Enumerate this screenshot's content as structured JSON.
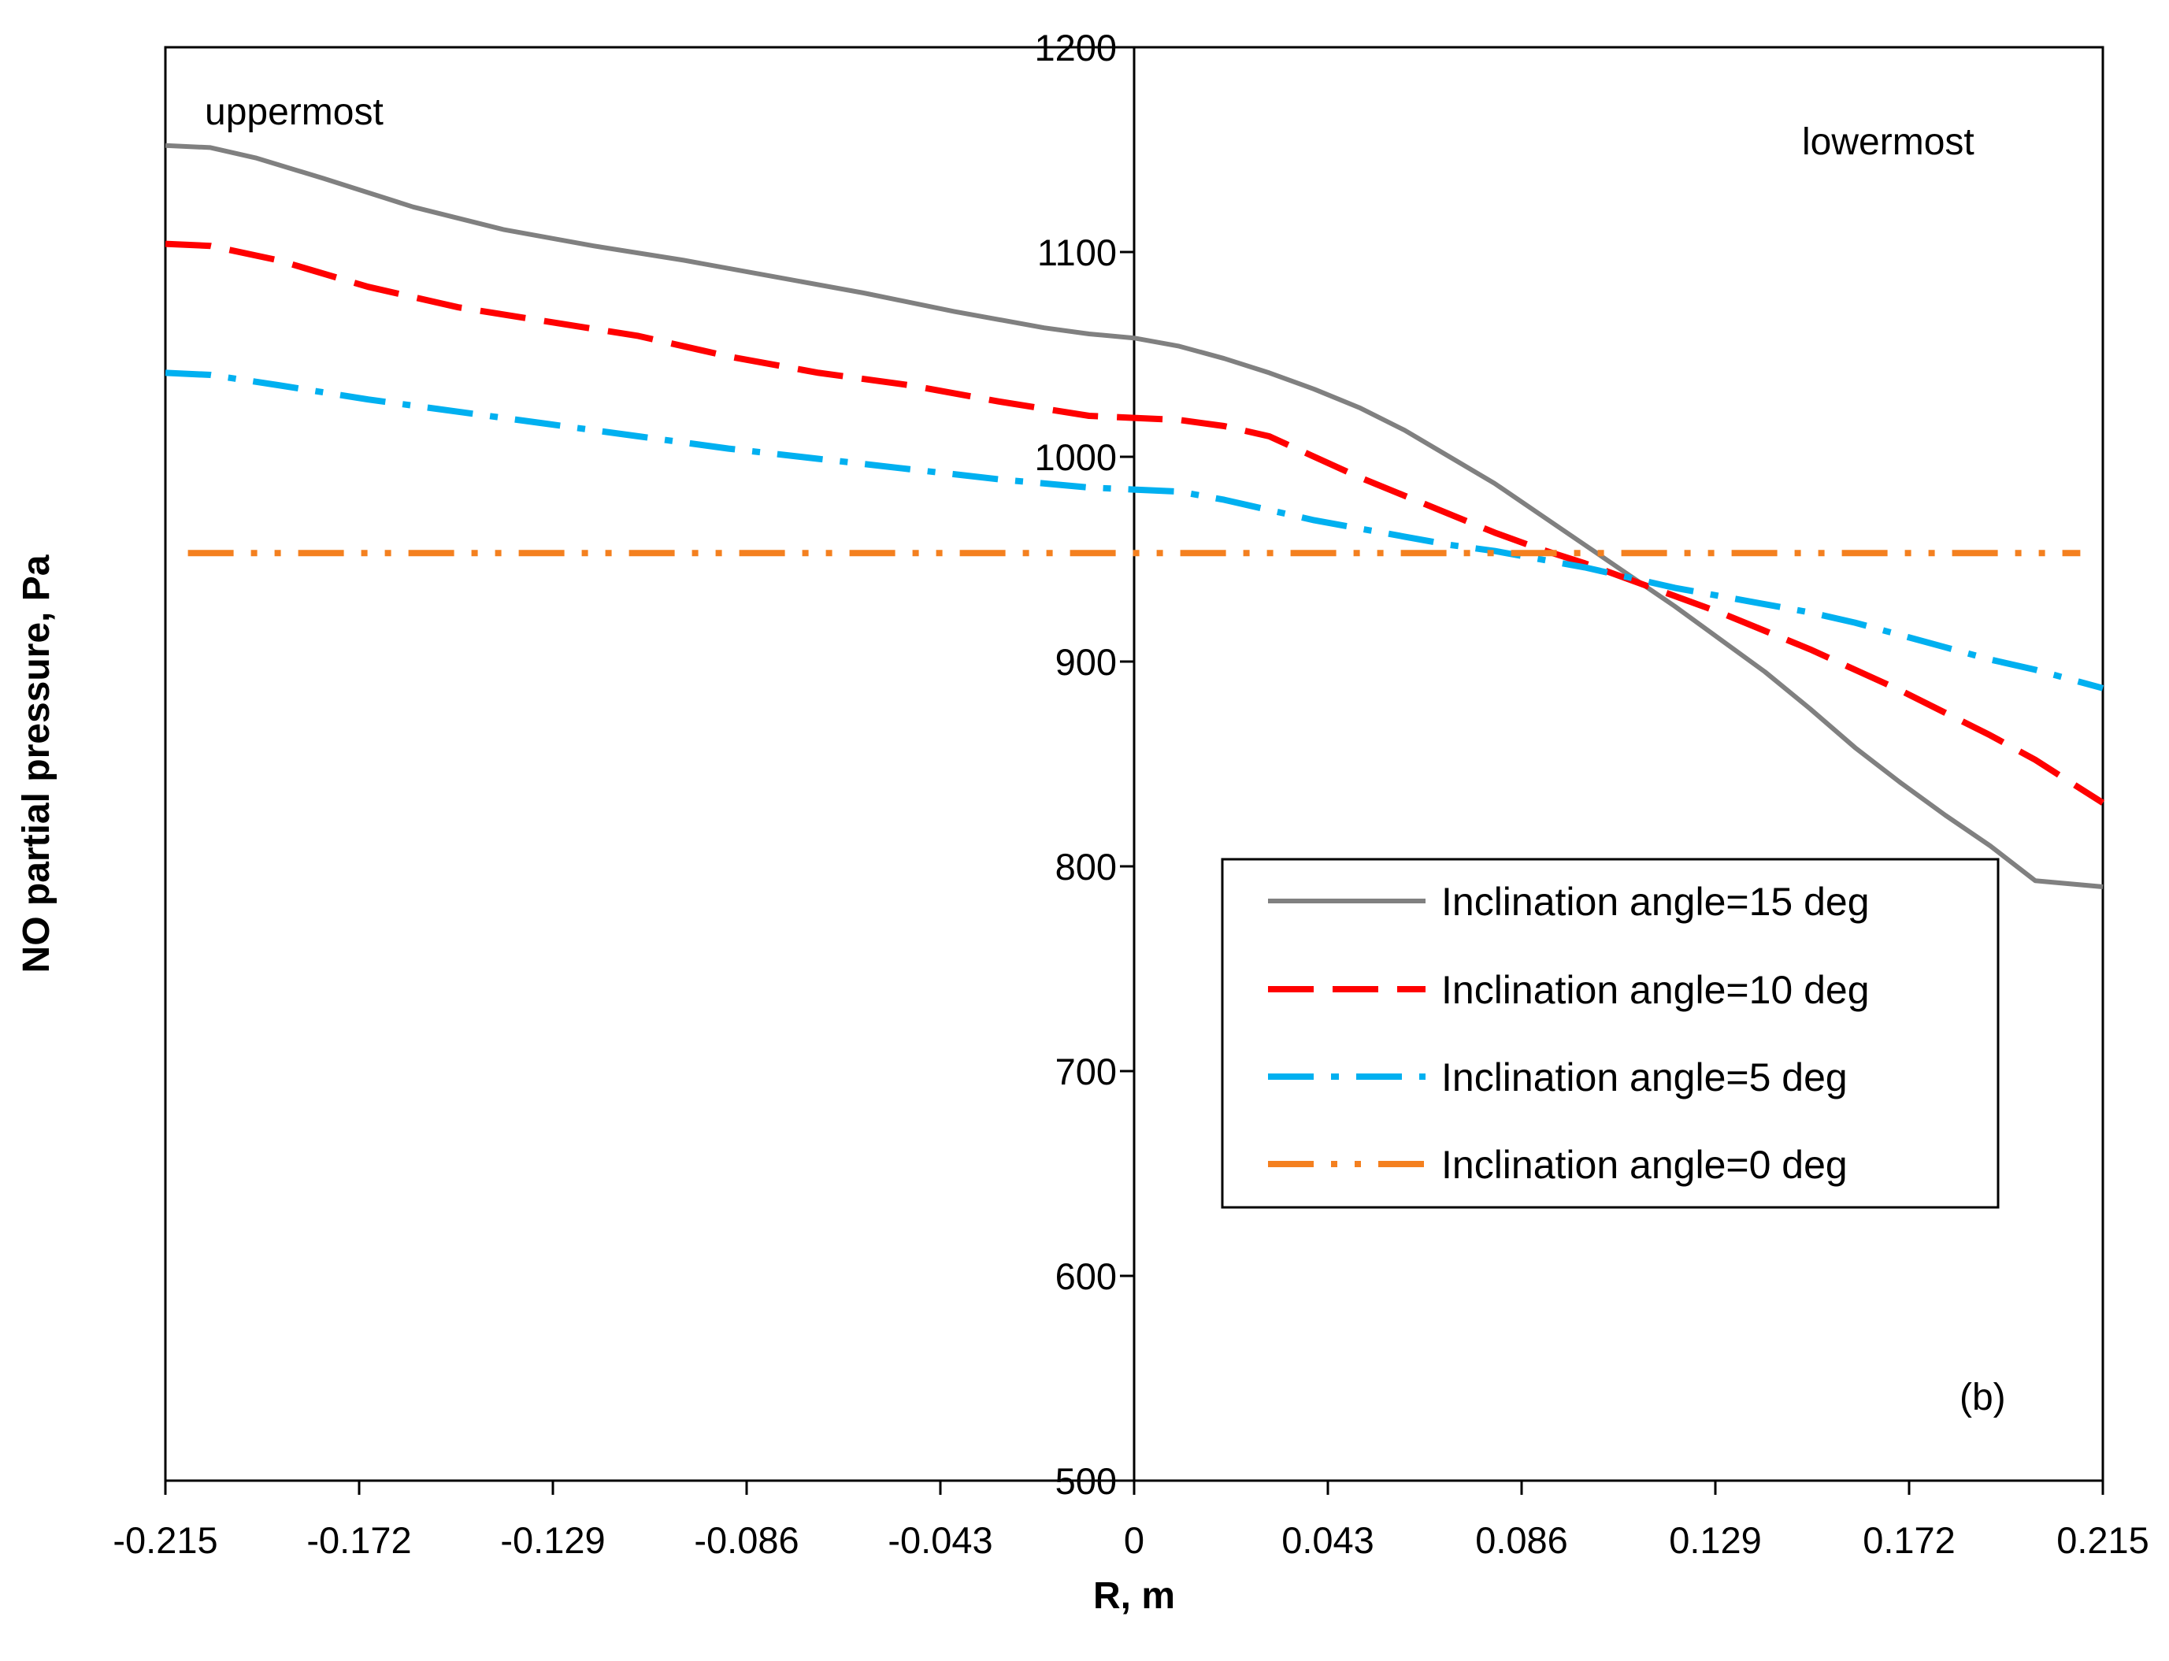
{
  "chart_data": {
    "type": "line",
    "xlabel": "R, m",
    "ylabel": "NO partial pressure, Pa",
    "xlim": [
      -0.215,
      0.215
    ],
    "ylim": [
      500,
      1200
    ],
    "x_ticks": [
      "-0.215",
      "-0.172",
      "-0.129",
      "-0.086",
      "-0.043",
      "0",
      "0.043",
      "0.086",
      "0.129",
      "0.172",
      "0.215"
    ],
    "y_ticks": [
      "500",
      "600",
      "700",
      "800",
      "900",
      "1000",
      "1100",
      "1200"
    ],
    "grid": false,
    "legend_position": "lower-right",
    "panel_label": "(b)",
    "annotations": {
      "left": "uppermost",
      "right": "lowermost"
    },
    "series": [
      {
        "name": "Inclination angle=15 deg",
        "color": "#808080",
        "style": "solid",
        "x": [
          -0.215,
          -0.205,
          -0.195,
          -0.18,
          -0.16,
          -0.14,
          -0.12,
          -0.1,
          -0.08,
          -0.06,
          -0.04,
          -0.02,
          -0.01,
          0,
          0.01,
          0.02,
          0.03,
          0.04,
          0.05,
          0.06,
          0.07,
          0.08,
          0.09,
          0.1,
          0.11,
          0.12,
          0.13,
          0.14,
          0.15,
          0.16,
          0.17,
          0.18,
          0.19,
          0.2,
          0.215
        ],
        "values": [
          1152,
          1151,
          1146,
          1136,
          1122,
          1111,
          1103,
          1096,
          1088,
          1080,
          1071,
          1063,
          1060,
          1058,
          1054,
          1048,
          1041,
          1033,
          1024,
          1013,
          1000,
          987,
          972,
          957,
          942,
          927,
          911,
          895,
          877,
          858,
          841,
          825,
          810,
          793,
          790
        ]
      },
      {
        "name": "Inclination angle=10 deg",
        "color": "#FF0000",
        "style": "dashed",
        "x": [
          -0.215,
          -0.205,
          -0.19,
          -0.17,
          -0.15,
          -0.13,
          -0.11,
          -0.09,
          -0.07,
          -0.05,
          -0.03,
          -0.01,
          0,
          0.01,
          0.02,
          0.03,
          0.04,
          0.05,
          0.06,
          0.07,
          0.08,
          0.09,
          0.1,
          0.11,
          0.12,
          0.13,
          0.14,
          0.15,
          0.16,
          0.17,
          0.18,
          0.19,
          0.2,
          0.215
        ],
        "values": [
          1104,
          1103,
          1096,
          1083,
          1073,
          1066,
          1059,
          1049,
          1041,
          1035,
          1027,
          1020,
          1019,
          1018,
          1015,
          1010,
          1000,
          990,
          981,
          972,
          963,
          955,
          948,
          940,
          932,
          924,
          915,
          906,
          896,
          886,
          875,
          864,
          852,
          831
        ]
      },
      {
        "name": "Inclination angle=5 deg",
        "color": "#00B0F0",
        "style": "dash-dot",
        "x": [
          -0.215,
          -0.205,
          -0.19,
          -0.17,
          -0.15,
          -0.13,
          -0.11,
          -0.09,
          -0.07,
          -0.05,
          -0.03,
          -0.01,
          0,
          0.01,
          0.02,
          0.03,
          0.04,
          0.05,
          0.06,
          0.07,
          0.08,
          0.09,
          0.1,
          0.11,
          0.12,
          0.13,
          0.14,
          0.15,
          0.16,
          0.17,
          0.18,
          0.19,
          0.2,
          0.215
        ],
        "values": [
          1041,
          1040,
          1035,
          1028,
          1022,
          1016,
          1010,
          1004,
          999,
          994,
          989,
          985,
          984,
          983,
          979,
          974,
          969,
          965,
          961,
          957,
          954,
          950,
          946,
          941,
          936,
          932,
          928,
          924,
          919,
          913,
          907,
          901,
          896,
          887
        ]
      },
      {
        "name": "Inclination angle=0 deg",
        "color": "#F4801F",
        "style": "dash-dot-dot",
        "x": [
          -0.21,
          0.21
        ],
        "values": [
          953,
          953
        ]
      }
    ]
  }
}
